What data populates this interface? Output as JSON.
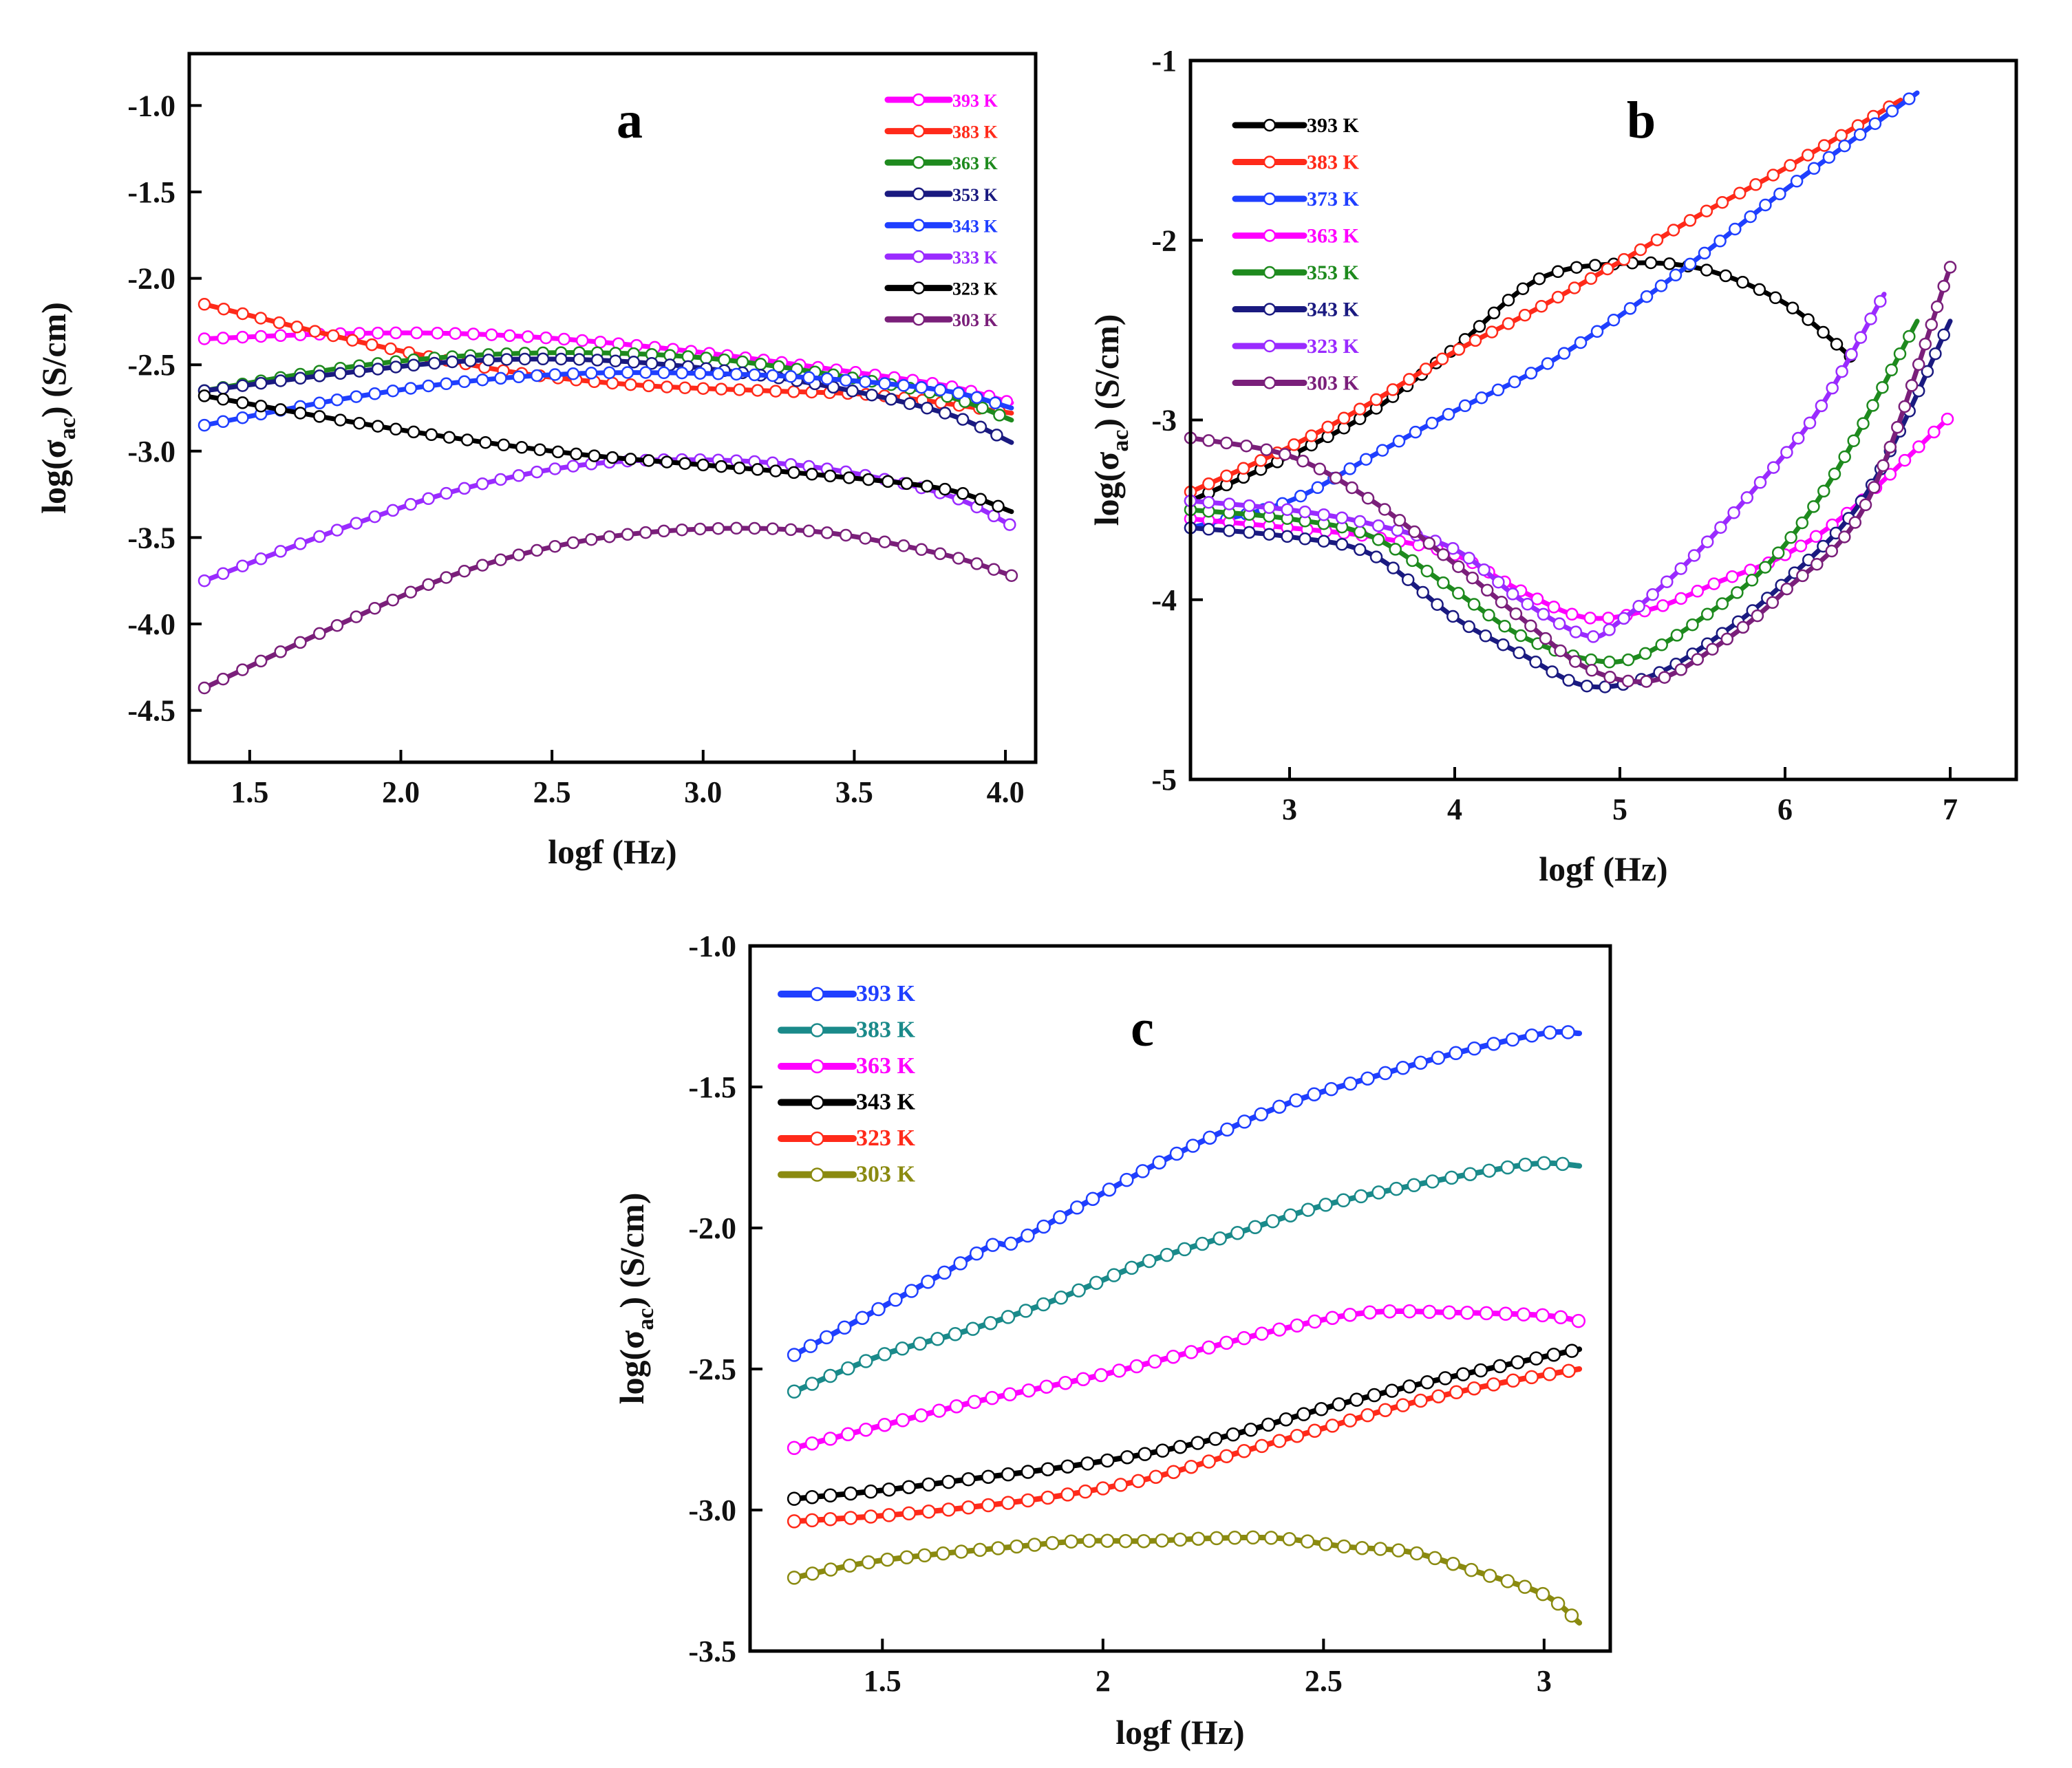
{
  "chart_data": [
    {
      "type": "line",
      "panel_label": "a",
      "xlabel": "logf (Hz)",
      "ylabel_prefix": "log(σ",
      "ylabel_subscript": "ac",
      "ylabel_suffix": ") (S/cm)",
      "xlim": [
        1.3,
        4.1
      ],
      "ylim": [
        -4.8,
        -0.7
      ],
      "xticks": [
        1.5,
        2.0,
        2.5,
        3.0,
        3.5,
        4.0
      ],
      "xtick_labels": [
        "1.5",
        "2.0",
        "2.5",
        "3.0",
        "3.5",
        "4.0"
      ],
      "yticks": [
        -1.0,
        -1.5,
        -2.0,
        -2.5,
        -3.0,
        -3.5,
        -4.0,
        -4.5
      ],
      "ytick_labels": [
        "-1.0",
        "-1.5",
        "-2.0",
        "-2.5",
        "-3.0",
        "-3.5",
        "-4.0",
        "-4.5"
      ],
      "legend_position": "top-right",
      "series": [
        {
          "name": "393 K",
          "color": "#ff00ff",
          "x": [
            1.35,
            1.8,
            2.2,
            2.6,
            3.0,
            3.4,
            3.8,
            4.02
          ],
          "y": [
            -2.35,
            -2.32,
            -2.32,
            -2.36,
            -2.43,
            -2.52,
            -2.62,
            -2.72
          ]
        },
        {
          "name": "383 K",
          "color": "#ff2a1a",
          "x": [
            1.35,
            1.7,
            2.0,
            2.4,
            2.8,
            3.2,
            3.6,
            4.02
          ],
          "y": [
            -2.15,
            -2.3,
            -2.42,
            -2.55,
            -2.62,
            -2.65,
            -2.68,
            -2.78
          ]
        },
        {
          "name": "363 K",
          "color": "#1e8a1e",
          "x": [
            1.35,
            1.8,
            2.2,
            2.6,
            3.0,
            3.4,
            3.8,
            4.02
          ],
          "y": [
            -2.65,
            -2.52,
            -2.45,
            -2.43,
            -2.46,
            -2.55,
            -2.68,
            -2.82
          ]
        },
        {
          "name": "353 K",
          "color": "#1a1a80",
          "x": [
            1.35,
            1.8,
            2.2,
            2.6,
            3.0,
            3.4,
            3.8,
            4.02
          ],
          "y": [
            -2.65,
            -2.55,
            -2.48,
            -2.47,
            -2.52,
            -2.62,
            -2.78,
            -2.95
          ]
        },
        {
          "name": "343 K",
          "color": "#1f3fff",
          "x": [
            1.35,
            1.8,
            2.2,
            2.6,
            3.0,
            3.4,
            3.8,
            4.02
          ],
          "y": [
            -2.85,
            -2.7,
            -2.6,
            -2.55,
            -2.55,
            -2.58,
            -2.65,
            -2.75
          ]
        },
        {
          "name": "333 K",
          "color": "#9a2bff",
          "x": [
            1.35,
            1.8,
            2.2,
            2.6,
            3.0,
            3.4,
            3.8,
            4.02
          ],
          "y": [
            -3.75,
            -3.45,
            -3.22,
            -3.08,
            -3.05,
            -3.1,
            -3.25,
            -3.43
          ]
        },
        {
          "name": "323 K",
          "color": "#000000",
          "x": [
            1.35,
            1.8,
            2.2,
            2.6,
            3.0,
            3.4,
            3.8,
            4.02
          ],
          "y": [
            -2.68,
            -2.82,
            -2.93,
            -3.02,
            -3.08,
            -3.14,
            -3.22,
            -3.35
          ]
        },
        {
          "name": "303 K",
          "color": "#7a1f7a",
          "x": [
            1.35,
            1.8,
            2.2,
            2.6,
            3.0,
            3.4,
            3.8,
            4.02
          ],
          "y": [
            -4.37,
            -4.0,
            -3.7,
            -3.52,
            -3.45,
            -3.47,
            -3.6,
            -3.72
          ]
        }
      ]
    },
    {
      "type": "line",
      "panel_label": "b",
      "xlabel": "logf (Hz)",
      "ylabel_prefix": "log(σ",
      "ylabel_subscript": "ac",
      "ylabel_suffix": ") (S/cm)",
      "xlim": [
        2.4,
        7.4
      ],
      "ylim": [
        -5,
        -1
      ],
      "xticks": [
        3,
        4,
        5,
        6,
        7
      ],
      "xtick_labels": [
        "3",
        "4",
        "5",
        "6",
        "7"
      ],
      "yticks": [
        -1,
        -2,
        -3,
        -4,
        -5
      ],
      "ytick_labels": [
        "-1",
        "-2",
        "-3",
        "-4",
        "-5"
      ],
      "legend_position": "top-left",
      "series": [
        {
          "name": "393 K",
          "color": "#000000",
          "x": [
            2.4,
            3.0,
            3.5,
            4.0,
            4.5,
            5.0,
            5.5,
            6.0,
            6.4
          ],
          "y": [
            -3.45,
            -3.2,
            -2.95,
            -2.6,
            -2.22,
            -2.13,
            -2.16,
            -2.35,
            -2.65
          ]
        },
        {
          "name": "383 K",
          "color": "#ff2a1a",
          "x": [
            2.4,
            3.0,
            3.5,
            4.0,
            4.5,
            5.0,
            5.5,
            6.0,
            6.7
          ],
          "y": [
            -3.4,
            -3.15,
            -2.9,
            -2.62,
            -2.38,
            -2.12,
            -1.85,
            -1.6,
            -1.22
          ]
        },
        {
          "name": "373 K",
          "color": "#1f3fff",
          "x": [
            2.4,
            3.0,
            3.5,
            4.0,
            4.5,
            5.0,
            5.5,
            6.0,
            6.8
          ],
          "y": [
            -3.6,
            -3.45,
            -3.2,
            -2.95,
            -2.72,
            -2.42,
            -2.08,
            -1.72,
            -1.18
          ]
        },
        {
          "name": "363 K",
          "color": "#ff00ff",
          "x": [
            2.4,
            3.0,
            3.5,
            4.0,
            4.4,
            4.8,
            5.2,
            5.6,
            6.0,
            6.4,
            7.0
          ],
          "y": [
            -3.55,
            -3.6,
            -3.65,
            -3.75,
            -3.95,
            -4.1,
            -4.05,
            -3.9,
            -3.75,
            -3.5,
            -2.98
          ]
        },
        {
          "name": "353 K",
          "color": "#1e8a1e",
          "x": [
            2.4,
            3.0,
            3.5,
            4.0,
            4.4,
            4.8,
            5.1,
            5.5,
            5.9,
            6.3,
            6.8
          ],
          "y": [
            -3.5,
            -3.55,
            -3.65,
            -3.95,
            -4.2,
            -4.33,
            -4.32,
            -4.1,
            -3.8,
            -3.3,
            -2.45
          ]
        },
        {
          "name": "343 K",
          "color": "#1a1a80",
          "x": [
            2.4,
            3.0,
            3.5,
            4.0,
            4.4,
            4.8,
            5.2,
            5.6,
            6.0,
            6.5,
            7.0
          ],
          "y": [
            -3.6,
            -3.65,
            -3.75,
            -4.1,
            -4.3,
            -4.48,
            -4.42,
            -4.2,
            -3.9,
            -3.4,
            -2.45
          ]
        },
        {
          "name": "323 K",
          "color": "#9a2bff",
          "x": [
            2.4,
            3.0,
            3.5,
            4.0,
            4.4,
            4.8,
            5.0,
            5.4,
            5.8,
            6.2,
            6.6
          ],
          "y": [
            -3.45,
            -3.5,
            -3.58,
            -3.72,
            -4.0,
            -4.2,
            -4.12,
            -3.8,
            -3.4,
            -2.95,
            -2.3
          ]
        },
        {
          "name": "303 K",
          "color": "#7a1f7a",
          "x": [
            2.4,
            3.0,
            3.5,
            4.0,
            4.4,
            4.8,
            5.2,
            5.6,
            6.0,
            6.5,
            7.0
          ],
          "y": [
            -3.1,
            -3.2,
            -3.45,
            -3.8,
            -4.1,
            -4.38,
            -4.45,
            -4.25,
            -3.95,
            -3.45,
            -2.15
          ]
        }
      ]
    },
    {
      "type": "line",
      "panel_label": "c",
      "xlabel": "logf (Hz)",
      "ylabel_prefix": "log(σ",
      "ylabel_subscript": "ac",
      "ylabel_suffix": ") (S/cm)",
      "xlim": [
        1.2,
        3.15
      ],
      "ylim": [
        -3.5,
        -1.0
      ],
      "xticks": [
        1.5,
        2,
        2.5,
        3
      ],
      "xtick_labels": [
        "1.5",
        "2",
        "2.5",
        "3"
      ],
      "yticks": [
        -1.0,
        -1.5,
        -2.0,
        -2.5,
        -3.0,
        -3.5
      ],
      "ytick_labels": [
        "-1.0",
        "-1.5",
        "-2.0",
        "-2.5",
        "-3.0",
        "-3.5"
      ],
      "legend_position": "top-left",
      "series": [
        {
          "name": "393 K",
          "color": "#1f3fff",
          "x": [
            1.3,
            1.5,
            1.65,
            1.75,
            1.8,
            1.95,
            2.15,
            2.4,
            2.6,
            2.8,
            3.0,
            3.08
          ],
          "y": [
            -2.45,
            -2.28,
            -2.15,
            -2.06,
            -2.05,
            -1.92,
            -1.75,
            -1.57,
            -1.47,
            -1.38,
            -1.31,
            -1.31
          ]
        },
        {
          "name": "383 K",
          "color": "#1a8a8a",
          "x": [
            1.3,
            1.5,
            1.7,
            1.9,
            2.1,
            2.3,
            2.5,
            2.7,
            2.9,
            3.0,
            3.08
          ],
          "y": [
            -2.58,
            -2.45,
            -2.36,
            -2.25,
            -2.12,
            -2.02,
            -1.92,
            -1.85,
            -1.79,
            -1.77,
            -1.78
          ]
        },
        {
          "name": "363 K",
          "color": "#ff00ff",
          "x": [
            1.3,
            1.5,
            1.7,
            1.85,
            2.0,
            2.2,
            2.4,
            2.6,
            2.8,
            3.0,
            3.08
          ],
          "y": [
            -2.78,
            -2.7,
            -2.62,
            -2.57,
            -2.52,
            -2.44,
            -2.36,
            -2.3,
            -2.3,
            -2.31,
            -2.33
          ]
        },
        {
          "name": "343 K",
          "color": "#000000",
          "x": [
            1.3,
            1.5,
            1.7,
            1.9,
            2.1,
            2.3,
            2.5,
            2.7,
            2.9,
            3.08
          ],
          "y": [
            -2.96,
            -2.93,
            -2.89,
            -2.85,
            -2.8,
            -2.73,
            -2.64,
            -2.56,
            -2.49,
            -2.43
          ]
        },
        {
          "name": "323 K",
          "color": "#ff2a1a",
          "x": [
            1.3,
            1.5,
            1.7,
            1.9,
            2.1,
            2.3,
            2.5,
            2.7,
            2.9,
            3.08
          ],
          "y": [
            -3.04,
            -3.02,
            -2.99,
            -2.95,
            -2.89,
            -2.8,
            -2.71,
            -2.62,
            -2.55,
            -2.5
          ]
        },
        {
          "name": "303 K",
          "color": "#8a8a10",
          "x": [
            1.3,
            1.45,
            1.6,
            1.8,
            1.95,
            2.1,
            2.25,
            2.4,
            2.55,
            2.7,
            2.85,
            3.0,
            3.08
          ],
          "y": [
            -3.24,
            -3.19,
            -3.16,
            -3.13,
            -3.11,
            -3.11,
            -3.1,
            -3.1,
            -3.13,
            -3.15,
            -3.22,
            -3.3,
            -3.4
          ]
        }
      ]
    }
  ]
}
